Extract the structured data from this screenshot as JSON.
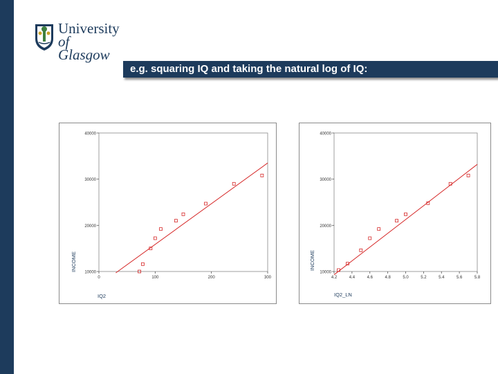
{
  "logo": {
    "line1": "University",
    "line2": "of Glasgow"
  },
  "banner": {
    "text": "e.g. squaring IQ and taking the natural log of IQ:"
  },
  "colors": {
    "navy": "#1d3b5c",
    "series": "#d62828"
  },
  "chart_data": [
    {
      "type": "scatter",
      "title": "",
      "xlabel": "IQ2",
      "ylabel": "INCOME",
      "xlim": [
        0,
        300
      ],
      "ylim": [
        10000,
        40000
      ],
      "x_ticks": [
        0,
        100,
        200,
        300
      ],
      "y_ticks": [
        10000,
        20000,
        30000,
        40000
      ],
      "x_tick_labels": [
        "0",
        "100",
        "200",
        "300"
      ],
      "y_tick_labels": [
        "10000",
        "20000",
        "30000",
        "40000"
      ],
      "grid": false,
      "points": [
        {
          "x": 72,
          "y": 10000
        },
        {
          "x": 78,
          "y": 11600
        },
        {
          "x": 92,
          "y": 15000
        },
        {
          "x": 100,
          "y": 17200
        },
        {
          "x": 110,
          "y": 19200
        },
        {
          "x": 137,
          "y": 21000
        },
        {
          "x": 150,
          "y": 22400
        },
        {
          "x": 190,
          "y": 24700
        },
        {
          "x": 240,
          "y": 29000
        },
        {
          "x": 290,
          "y": 30800
        }
      ],
      "fit_line": {
        "x": [
          30,
          300
        ],
        "y": [
          9700,
          33500
        ]
      }
    },
    {
      "type": "scatter",
      "title": "",
      "xlabel": "IQ2_LN",
      "ylabel": "INCOME",
      "xlim": [
        4.2,
        5.8
      ],
      "ylim": [
        10000,
        40000
      ],
      "x_ticks": [
        4.2,
        4.4,
        4.6,
        4.8,
        5.0,
        5.2,
        5.4,
        5.6,
        5.8
      ],
      "y_ticks": [
        10000,
        20000,
        30000,
        40000
      ],
      "x_tick_labels": [
        "4.2",
        "4.4",
        "4.6",
        "4.8",
        "5.0",
        "5.2",
        "5.4",
        "5.6",
        "5.8"
      ],
      "y_tick_labels": [
        "10000",
        "20000",
        "30000",
        "40000"
      ],
      "grid": false,
      "points": [
        {
          "x": 4.25,
          "y": 10300
        },
        {
          "x": 4.35,
          "y": 11700
        },
        {
          "x": 4.5,
          "y": 14600
        },
        {
          "x": 4.6,
          "y": 17200
        },
        {
          "x": 4.7,
          "y": 19200
        },
        {
          "x": 4.9,
          "y": 21000
        },
        {
          "x": 5.0,
          "y": 22400
        },
        {
          "x": 5.25,
          "y": 24800
        },
        {
          "x": 5.5,
          "y": 29000
        },
        {
          "x": 5.7,
          "y": 30800
        }
      ],
      "fit_line": {
        "x": [
          4.2,
          5.8
        ],
        "y": [
          9300,
          33200
        ]
      }
    }
  ]
}
